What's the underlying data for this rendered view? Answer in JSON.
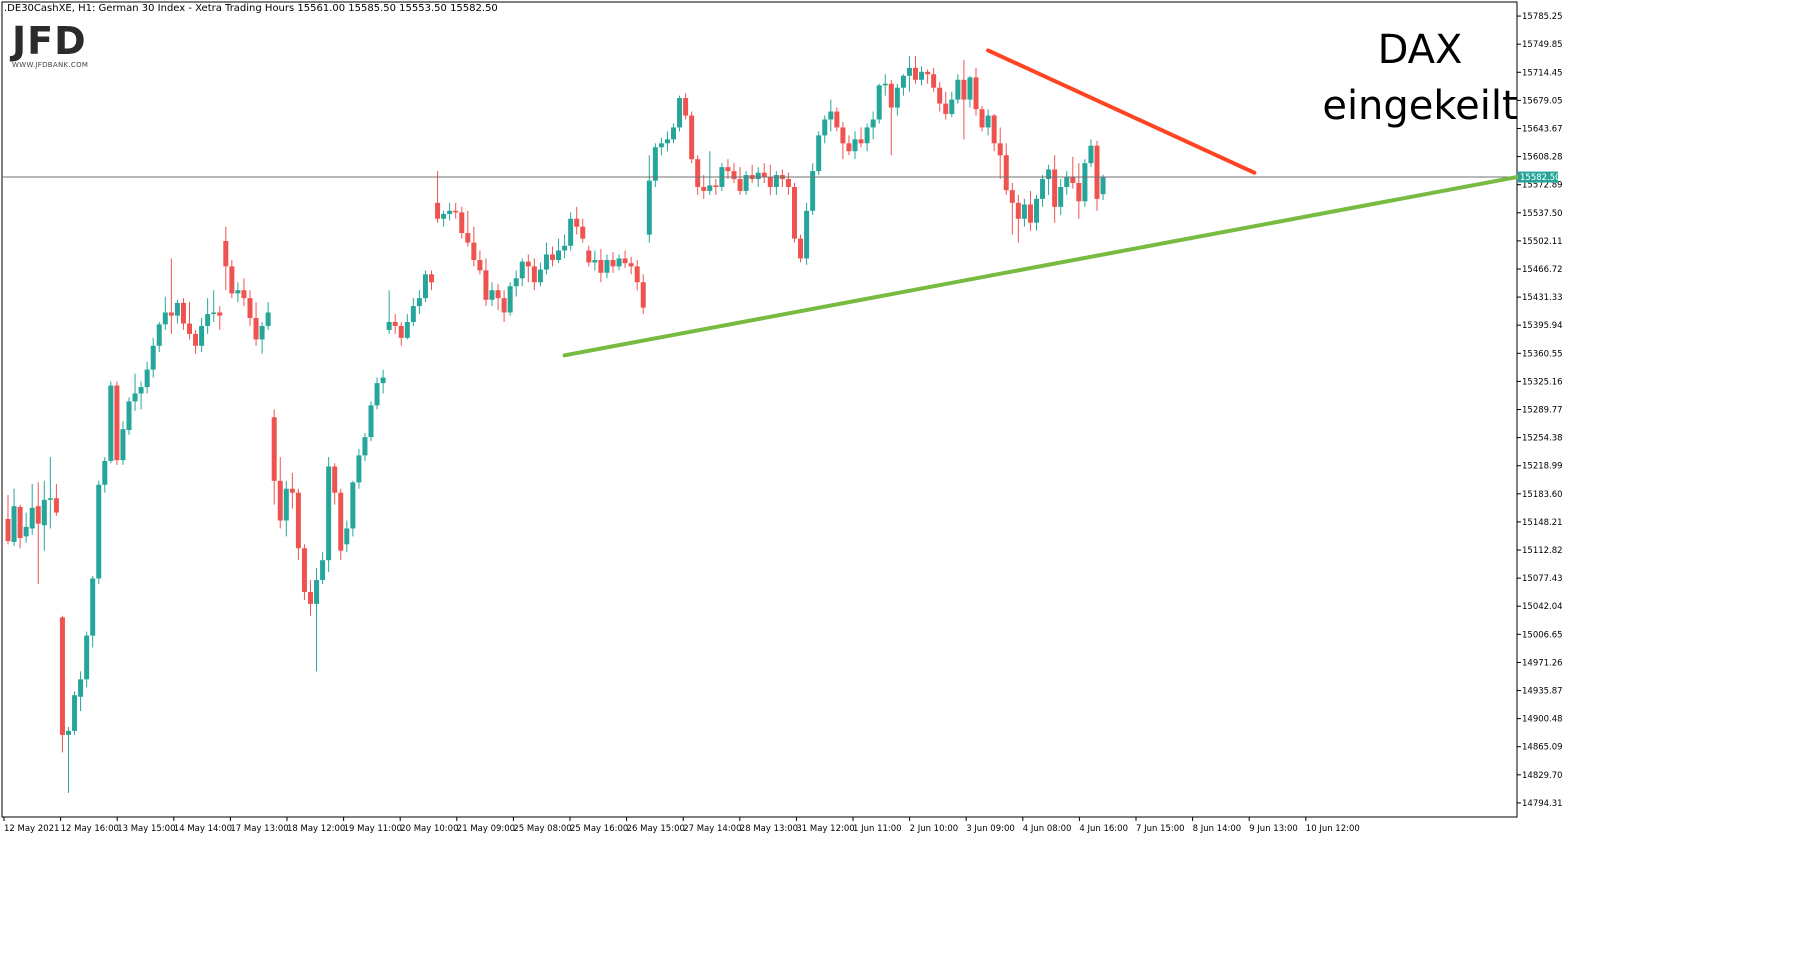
{
  "header": {
    "info": ".DE30CashXE, H1:  German 30 Index  - Xetra Trading Hours  15561.00 15585.50 15553.50 15582.50"
  },
  "logo": {
    "mark": "JFD",
    "url": "WWW.JFDBANK.COM"
  },
  "annotation": {
    "line1": "DAX",
    "line2": "eingekeilt"
  },
  "chart_data": {
    "type": "candlestick",
    "instrument": ".DE30CashXE",
    "timeframe": "H1",
    "description": "German 30 Index - Xetra Trading Hours",
    "ohlc_header": {
      "open": 15561.0,
      "high": 15585.5,
      "low": 15553.5,
      "close": 15582.5
    },
    "last_price": 15582.5,
    "last_price_label": "15582.50",
    "y_ticks": [
      "15785.25",
      "15749.85",
      "15714.45",
      "15679.05",
      "15643.67",
      "15608.28",
      "15572.89",
      "15537.50",
      "15502.11",
      "15466.72",
      "15431.33",
      "15395.94",
      "15360.55",
      "15325.16",
      "15289.77",
      "15254.38",
      "15218.99",
      "15183.60",
      "15148.21",
      "15112.82",
      "15077.43",
      "15042.04",
      "15006.65",
      "14971.26",
      "14935.87",
      "14900.48",
      "14865.09",
      "14829.70",
      "14794.31"
    ],
    "x_ticks": [
      "12 May 2021",
      "12 May 16:00",
      "13 May 15:00",
      "14 May 14:00",
      "17 May 13:00",
      "18 May 12:00",
      "19 May 11:00",
      "20 May 10:00",
      "21 May 09:00",
      "25 May 08:00",
      "25 May 16:00",
      "26 May 15:00",
      "27 May 14:00",
      "28 May 13:00",
      "31 May 12:00",
      "1 Jun 11:00",
      "2 Jun 10:00",
      "3 Jun 09:00",
      "4 Jun 08:00",
      "4 Jun 16:00",
      "7 Jun 15:00",
      "8 Jun 14:00",
      "9 Jun 13:00",
      "10 Jun 12:00"
    ],
    "colors": {
      "up": "#26a69a",
      "down": "#ef5350",
      "support": "#77bb41",
      "resistance": "#ff4422",
      "price_line": "#707070"
    },
    "candles": [
      {
        "o": 15152,
        "h": 15182,
        "l": 15120,
        "c": 15124
      },
      {
        "o": 15123,
        "h": 15190,
        "l": 15118,
        "c": 15168
      },
      {
        "o": 15167,
        "h": 15170,
        "l": 15115,
        "c": 15128
      },
      {
        "o": 15130,
        "h": 15160,
        "l": 15122,
        "c": 15142
      },
      {
        "o": 15140,
        "h": 15196,
        "l": 15132,
        "c": 15166
      },
      {
        "o": 15168,
        "h": 15198,
        "l": 15070,
        "c": 15146
      },
      {
        "o": 15144,
        "h": 15200,
        "l": 15112,
        "c": 15176
      },
      {
        "o": 15176,
        "h": 15230,
        "l": 15140,
        "c": 15178
      },
      {
        "o": 15178,
        "h": 15196,
        "l": 15156,
        "c": 15160
      },
      {
        "o": 15028,
        "h": 15030,
        "l": 14858,
        "c": 14880
      },
      {
        "o": 14880,
        "h": 14890,
        "l": 14807,
        "c": 14885
      },
      {
        "o": 14885,
        "h": 14935,
        "l": 14880,
        "c": 14930
      },
      {
        "o": 14928,
        "h": 14960,
        "l": 14910,
        "c": 14950
      },
      {
        "o": 14950,
        "h": 15010,
        "l": 14940,
        "c": 15005
      },
      {
        "o": 15005,
        "h": 15080,
        "l": 14990,
        "c": 15077
      },
      {
        "o": 15077,
        "h": 15200,
        "l": 15070,
        "c": 15195
      },
      {
        "o": 15195,
        "h": 15230,
        "l": 15185,
        "c": 15225
      },
      {
        "o": 15225,
        "h": 15325,
        "l": 15222,
        "c": 15320
      },
      {
        "o": 15320,
        "h": 15325,
        "l": 15220,
        "c": 15226
      },
      {
        "o": 15226,
        "h": 15275,
        "l": 15220,
        "c": 15265
      },
      {
        "o": 15264,
        "h": 15305,
        "l": 15258,
        "c": 15300
      },
      {
        "o": 15300,
        "h": 15335,
        "l": 15288,
        "c": 15310
      },
      {
        "o": 15310,
        "h": 15325,
        "l": 15290,
        "c": 15318
      },
      {
        "o": 15318,
        "h": 15350,
        "l": 15310,
        "c": 15340
      },
      {
        "o": 15340,
        "h": 15380,
        "l": 15330,
        "c": 15370
      },
      {
        "o": 15370,
        "h": 15400,
        "l": 15362,
        "c": 15397
      },
      {
        "o": 15397,
        "h": 15432,
        "l": 15390,
        "c": 15412
      },
      {
        "o": 15412,
        "h": 15480,
        "l": 15385,
        "c": 15408
      },
      {
        "o": 15408,
        "h": 15428,
        "l": 15398,
        "c": 15424
      },
      {
        "o": 15424,
        "h": 15430,
        "l": 15390,
        "c": 15398
      },
      {
        "o": 15398,
        "h": 15425,
        "l": 15378,
        "c": 15385
      },
      {
        "o": 15385,
        "h": 15390,
        "l": 15360,
        "c": 15370
      },
      {
        "o": 15370,
        "h": 15405,
        "l": 15362,
        "c": 15395
      },
      {
        "o": 15395,
        "h": 15430,
        "l": 15385,
        "c": 15410
      },
      {
        "o": 15410,
        "h": 15440,
        "l": 15400,
        "c": 15412
      },
      {
        "o": 15412,
        "h": 15420,
        "l": 15390,
        "c": 15408
      },
      {
        "o": 15502,
        "h": 15520,
        "l": 15440,
        "c": 15470
      },
      {
        "o": 15470,
        "h": 15478,
        "l": 15430,
        "c": 15436
      },
      {
        "o": 15436,
        "h": 15450,
        "l": 15425,
        "c": 15440
      },
      {
        "o": 15440,
        "h": 15455,
        "l": 15420,
        "c": 15430
      },
      {
        "o": 15430,
        "h": 15440,
        "l": 15395,
        "c": 15405
      },
      {
        "o": 15405,
        "h": 15425,
        "l": 15370,
        "c": 15378
      },
      {
        "o": 15378,
        "h": 15400,
        "l": 15360,
        "c": 15395
      },
      {
        "o": 15395,
        "h": 15425,
        "l": 15390,
        "c": 15412
      },
      {
        "o": 15280,
        "h": 15290,
        "l": 15170,
        "c": 15200
      },
      {
        "o": 15200,
        "h": 15230,
        "l": 15140,
        "c": 15150
      },
      {
        "o": 15150,
        "h": 15200,
        "l": 15130,
        "c": 15190
      },
      {
        "o": 15190,
        "h": 15210,
        "l": 15165,
        "c": 15185
      },
      {
        "o": 15185,
        "h": 15190,
        "l": 15100,
        "c": 15115
      },
      {
        "o": 15115,
        "h": 15120,
        "l": 15050,
        "c": 15060
      },
      {
        "o": 15060,
        "h": 15075,
        "l": 15030,
        "c": 15045
      },
      {
        "o": 15045,
        "h": 15090,
        "l": 14960,
        "c": 15075
      },
      {
        "o": 15075,
        "h": 15110,
        "l": 15070,
        "c": 15100
      },
      {
        "o": 15100,
        "h": 15230,
        "l": 15085,
        "c": 15218
      },
      {
        "o": 15218,
        "h": 15222,
        "l": 15170,
        "c": 15185
      },
      {
        "o": 15185,
        "h": 15190,
        "l": 15100,
        "c": 15112
      },
      {
        "o": 15120,
        "h": 15150,
        "l": 15110,
        "c": 15140
      },
      {
        "o": 15140,
        "h": 15200,
        "l": 15130,
        "c": 15198
      },
      {
        "o": 15198,
        "h": 15240,
        "l": 15190,
        "c": 15232
      },
      {
        "o": 15232,
        "h": 15260,
        "l": 15225,
        "c": 15255
      },
      {
        "o": 15255,
        "h": 15300,
        "l": 15250,
        "c": 15295
      },
      {
        "o": 15295,
        "h": 15330,
        "l": 15290,
        "c": 15323
      },
      {
        "o": 15323,
        "h": 15340,
        "l": 15310,
        "c": 15330
      },
      {
        "o": 15390,
        "h": 15440,
        "l": 15385,
        "c": 15400
      },
      {
        "o": 15400,
        "h": 15410,
        "l": 15385,
        "c": 15395
      },
      {
        "o": 15395,
        "h": 15400,
        "l": 15370,
        "c": 15380
      },
      {
        "o": 15380,
        "h": 15410,
        "l": 15378,
        "c": 15400
      },
      {
        "o": 15400,
        "h": 15430,
        "l": 15395,
        "c": 15420
      },
      {
        "o": 15420,
        "h": 15440,
        "l": 15410,
        "c": 15430
      },
      {
        "o": 15430,
        "h": 15465,
        "l": 15425,
        "c": 15460
      },
      {
        "o": 15460,
        "h": 15465,
        "l": 15440,
        "c": 15450
      },
      {
        "o": 15550,
        "h": 15590,
        "l": 15525,
        "c": 15530
      },
      {
        "o": 15530,
        "h": 15540,
        "l": 15520,
        "c": 15536
      },
      {
        "o": 15536,
        "h": 15550,
        "l": 15528,
        "c": 15540
      },
      {
        "o": 15540,
        "h": 15550,
        "l": 15530,
        "c": 15538
      },
      {
        "o": 15538,
        "h": 15545,
        "l": 15505,
        "c": 15512
      },
      {
        "o": 15512,
        "h": 15540,
        "l": 15495,
        "c": 15500
      },
      {
        "o": 15500,
        "h": 15520,
        "l": 15470,
        "c": 15478
      },
      {
        "o": 15478,
        "h": 15490,
        "l": 15460,
        "c": 15465
      },
      {
        "o": 15465,
        "h": 15480,
        "l": 15420,
        "c": 15428
      },
      {
        "o": 15428,
        "h": 15450,
        "l": 15420,
        "c": 15440
      },
      {
        "o": 15440,
        "h": 15448,
        "l": 15415,
        "c": 15430
      },
      {
        "o": 15430,
        "h": 15440,
        "l": 15400,
        "c": 15412
      },
      {
        "o": 15412,
        "h": 15450,
        "l": 15408,
        "c": 15445
      },
      {
        "o": 15445,
        "h": 15465,
        "l": 15432,
        "c": 15455
      },
      {
        "o": 15455,
        "h": 15480,
        "l": 15445,
        "c": 15476
      },
      {
        "o": 15476,
        "h": 15485,
        "l": 15450,
        "c": 15470
      },
      {
        "o": 15470,
        "h": 15480,
        "l": 15440,
        "c": 15450
      },
      {
        "o": 15450,
        "h": 15475,
        "l": 15445,
        "c": 15466
      },
      {
        "o": 15466,
        "h": 15500,
        "l": 15460,
        "c": 15485
      },
      {
        "o": 15485,
        "h": 15495,
        "l": 15470,
        "c": 15478
      },
      {
        "o": 15478,
        "h": 15505,
        "l": 15474,
        "c": 15490
      },
      {
        "o": 15490,
        "h": 15510,
        "l": 15480,
        "c": 15496
      },
      {
        "o": 15496,
        "h": 15538,
        "l": 15490,
        "c": 15530
      },
      {
        "o": 15530,
        "h": 15545,
        "l": 15510,
        "c": 15520
      },
      {
        "o": 15520,
        "h": 15530,
        "l": 15500,
        "c": 15505
      },
      {
        "o": 15490,
        "h": 15496,
        "l": 15470,
        "c": 15475
      },
      {
        "o": 15475,
        "h": 15490,
        "l": 15465,
        "c": 15478
      },
      {
        "o": 15478,
        "h": 15492,
        "l": 15450,
        "c": 15462
      },
      {
        "o": 15462,
        "h": 15485,
        "l": 15455,
        "c": 15478
      },
      {
        "o": 15478,
        "h": 15488,
        "l": 15462,
        "c": 15470
      },
      {
        "o": 15470,
        "h": 15485,
        "l": 15465,
        "c": 15480
      },
      {
        "o": 15480,
        "h": 15490,
        "l": 15468,
        "c": 15474
      },
      {
        "o": 15474,
        "h": 15482,
        "l": 15460,
        "c": 15470
      },
      {
        "o": 15470,
        "h": 15478,
        "l": 15440,
        "c": 15450
      },
      {
        "o": 15450,
        "h": 15460,
        "l": 15410,
        "c": 15418
      },
      {
        "o": 15510,
        "h": 15610,
        "l": 15500,
        "c": 15578
      },
      {
        "o": 15578,
        "h": 15625,
        "l": 15570,
        "c": 15620
      },
      {
        "o": 15620,
        "h": 15632,
        "l": 15610,
        "c": 15625
      },
      {
        "o": 15625,
        "h": 15640,
        "l": 15615,
        "c": 15630
      },
      {
        "o": 15630,
        "h": 15650,
        "l": 15625,
        "c": 15645
      },
      {
        "o": 15645,
        "h": 15685,
        "l": 15640,
        "c": 15682
      },
      {
        "o": 15682,
        "h": 15688,
        "l": 15655,
        "c": 15660
      },
      {
        "o": 15660,
        "h": 15665,
        "l": 15600,
        "c": 15605
      },
      {
        "o": 15605,
        "h": 15610,
        "l": 15560,
        "c": 15570
      },
      {
        "o": 15570,
        "h": 15585,
        "l": 15555,
        "c": 15565
      },
      {
        "o": 15565,
        "h": 15615,
        "l": 15560,
        "c": 15572
      },
      {
        "o": 15572,
        "h": 15580,
        "l": 15560,
        "c": 15570
      },
      {
        "o": 15570,
        "h": 15600,
        "l": 15565,
        "c": 15595
      },
      {
        "o": 15595,
        "h": 15605,
        "l": 15580,
        "c": 15590
      },
      {
        "o": 15590,
        "h": 15600,
        "l": 15575,
        "c": 15580
      },
      {
        "o": 15580,
        "h": 15595,
        "l": 15560,
        "c": 15565
      },
      {
        "o": 15565,
        "h": 15590,
        "l": 15560,
        "c": 15585
      },
      {
        "o": 15585,
        "h": 15598,
        "l": 15575,
        "c": 15580
      },
      {
        "o": 15580,
        "h": 15595,
        "l": 15570,
        "c": 15588
      },
      {
        "o": 15588,
        "h": 15600,
        "l": 15575,
        "c": 15582
      },
      {
        "o": 15582,
        "h": 15598,
        "l": 15560,
        "c": 15570
      },
      {
        "o": 15570,
        "h": 15590,
        "l": 15560,
        "c": 15585
      },
      {
        "o": 15585,
        "h": 15592,
        "l": 15570,
        "c": 15580
      },
      {
        "o": 15580,
        "h": 15588,
        "l": 15560,
        "c": 15570
      },
      {
        "o": 15570,
        "h": 15575,
        "l": 15500,
        "c": 15505
      },
      {
        "o": 15505,
        "h": 15510,
        "l": 15475,
        "c": 15480
      },
      {
        "o": 15480,
        "h": 15550,
        "l": 15472,
        "c": 15540
      },
      {
        "o": 15540,
        "h": 15600,
        "l": 15535,
        "c": 15590
      },
      {
        "o": 15590,
        "h": 15640,
        "l": 15585,
        "c": 15635
      },
      {
        "o": 15635,
        "h": 15660,
        "l": 15625,
        "c": 15655
      },
      {
        "o": 15655,
        "h": 15680,
        "l": 15640,
        "c": 15665
      },
      {
        "o": 15665,
        "h": 15670,
        "l": 15640,
        "c": 15645
      },
      {
        "o": 15645,
        "h": 15652,
        "l": 15605,
        "c": 15625
      },
      {
        "o": 15625,
        "h": 15635,
        "l": 15610,
        "c": 15615
      },
      {
        "o": 15615,
        "h": 15640,
        "l": 15605,
        "c": 15630
      },
      {
        "o": 15630,
        "h": 15645,
        "l": 15620,
        "c": 15625
      },
      {
        "o": 15625,
        "h": 15650,
        "l": 15615,
        "c": 15645
      },
      {
        "o": 15645,
        "h": 15665,
        "l": 15630,
        "c": 15655
      },
      {
        "o": 15655,
        "h": 15700,
        "l": 15650,
        "c": 15698
      },
      {
        "o": 15698,
        "h": 15712,
        "l": 15685,
        "c": 15700
      },
      {
        "o": 15700,
        "h": 15705,
        "l": 15610,
        "c": 15670
      },
      {
        "o": 15670,
        "h": 15700,
        "l": 15660,
        "c": 15695
      },
      {
        "o": 15695,
        "h": 15712,
        "l": 15685,
        "c": 15710
      },
      {
        "o": 15710,
        "h": 15735,
        "l": 15690,
        "c": 15720
      },
      {
        "o": 15720,
        "h": 15735,
        "l": 15700,
        "c": 15705
      },
      {
        "o": 15705,
        "h": 15722,
        "l": 15698,
        "c": 15715
      },
      {
        "o": 15715,
        "h": 15718,
        "l": 15700,
        "c": 15712
      },
      {
        "o": 15712,
        "h": 15720,
        "l": 15690,
        "c": 15695
      },
      {
        "o": 15695,
        "h": 15702,
        "l": 15665,
        "c": 15675
      },
      {
        "o": 15675,
        "h": 15690,
        "l": 15655,
        "c": 15662
      },
      {
        "o": 15662,
        "h": 15690,
        "l": 15658,
        "c": 15680
      },
      {
        "o": 15680,
        "h": 15712,
        "l": 15675,
        "c": 15705
      },
      {
        "o": 15705,
        "h": 15730,
        "l": 15630,
        "c": 15680
      },
      {
        "o": 15680,
        "h": 15710,
        "l": 15670,
        "c": 15708
      },
      {
        "o": 15708,
        "h": 15720,
        "l": 15660,
        "c": 15668
      },
      {
        "o": 15668,
        "h": 15672,
        "l": 15640,
        "c": 15645
      },
      {
        "o": 15645,
        "h": 15668,
        "l": 15635,
        "c": 15660
      },
      {
        "o": 15660,
        "h": 15662,
        "l": 15615,
        "c": 15625
      },
      {
        "o": 15625,
        "h": 15645,
        "l": 15580,
        "c": 15610
      },
      {
        "o": 15610,
        "h": 15625,
        "l": 15560,
        "c": 15566
      },
      {
        "o": 15566,
        "h": 15575,
        "l": 15510,
        "c": 15550
      },
      {
        "o": 15550,
        "h": 15560,
        "l": 15500,
        "c": 15530
      },
      {
        "o": 15530,
        "h": 15555,
        "l": 15520,
        "c": 15548
      },
      {
        "o": 15548,
        "h": 15565,
        "l": 15515,
        "c": 15525
      },
      {
        "o": 15525,
        "h": 15560,
        "l": 15515,
        "c": 15555
      },
      {
        "o": 15555,
        "h": 15585,
        "l": 15545,
        "c": 15580
      },
      {
        "o": 15580,
        "h": 15598,
        "l": 15560,
        "c": 15592
      },
      {
        "o": 15592,
        "h": 15610,
        "l": 15525,
        "c": 15545
      },
      {
        "o": 15545,
        "h": 15580,
        "l": 15535,
        "c": 15570
      },
      {
        "o": 15570,
        "h": 15590,
        "l": 15560,
        "c": 15582
      },
      {
        "o": 15582,
        "h": 15608,
        "l": 15568,
        "c": 15575
      },
      {
        "o": 15575,
        "h": 15600,
        "l": 15530,
        "c": 15552
      },
      {
        "o": 15552,
        "h": 15605,
        "l": 15545,
        "c": 15600
      },
      {
        "o": 15600,
        "h": 15630,
        "l": 15595,
        "c": 15622
      },
      {
        "o": 15622,
        "h": 15628,
        "l": 15540,
        "c": 15555
      },
      {
        "o": 15561,
        "h": 15585.5,
        "l": 15553.5,
        "c": 15582.5
      }
    ],
    "trendlines": [
      {
        "name": "support",
        "from_candle": 92,
        "from_price": 15358,
        "to_price_at_right_edge": 15582.5
      },
      {
        "name": "resistance",
        "from_candle": 162,
        "from_price": 15742,
        "to_candle": 206,
        "to_price": 15588
      }
    ]
  }
}
